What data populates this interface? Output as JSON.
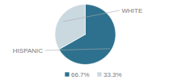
{
  "chart_data": {
    "type": "pie",
    "categories": [
      "HISPANIC",
      "WHITE"
    ],
    "values": [
      66.7,
      33.3
    ],
    "value_labels": [
      "66.7%",
      "33.3%"
    ],
    "colors": [
      "#2e718e",
      "#cad9e0"
    ],
    "legend": "bottom"
  }
}
